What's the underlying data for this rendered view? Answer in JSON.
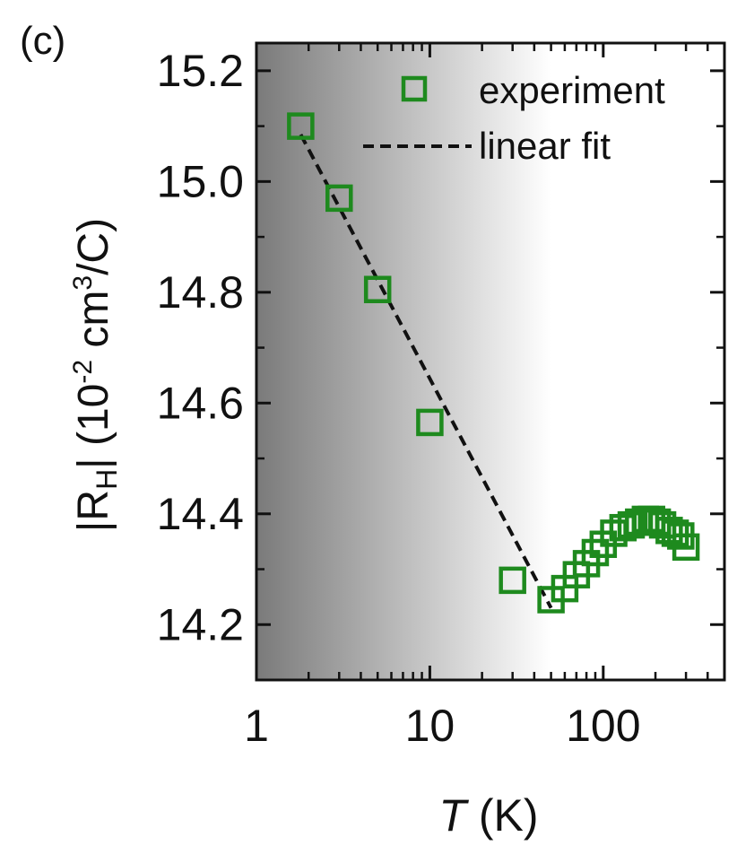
{
  "panel_label": "(c)",
  "colors": {
    "marker": "#1e8a1e",
    "fit_line": "#111111",
    "axes": "#111111",
    "shade_dark": "#7a7a7a",
    "shade_light": "#ffffff"
  },
  "chart_data": {
    "type": "scatter",
    "title": "",
    "xlabel": {
      "symbol": "T",
      "unit": " (K)"
    },
    "ylabel": {
      "prefix": "|R",
      "sub": "H",
      "mid": "| (10",
      "sup1": "-2",
      "mid2": " cm",
      "sup2": "3",
      "suffix": "/C)"
    },
    "x_scale": "log",
    "xlim": [
      1,
      500
    ],
    "ylim": [
      14.1,
      15.25
    ],
    "x_ticks": [
      1,
      10,
      100
    ],
    "x_tick_labels": [
      "1",
      "10",
      "100"
    ],
    "y_ticks": [
      14.2,
      14.4,
      14.6,
      14.8,
      15.0,
      15.2
    ],
    "y_tick_labels": [
      "14.2",
      "14.4",
      "14.6",
      "14.8",
      "15.0",
      "15.2"
    ],
    "shaded_region": {
      "x_start": 1,
      "x_end": 50,
      "description_gradient": "dark-to-light"
    },
    "legend": {
      "placement": "top-right",
      "entries": [
        {
          "label": "experiment",
          "kind": "marker"
        },
        {
          "label": "linear fit",
          "kind": "dashed-line"
        }
      ]
    },
    "series": [
      {
        "name": "experiment",
        "kind": "open-square",
        "x": [
          1.8,
          3,
          5,
          10,
          30,
          50,
          60,
          70,
          80,
          90,
          100,
          115,
          130,
          145,
          160,
          175,
          190,
          205,
          220,
          240,
          260,
          280,
          300
        ],
        "y": [
          15.1,
          14.97,
          14.805,
          14.565,
          14.28,
          14.245,
          14.265,
          14.29,
          14.31,
          14.33,
          14.345,
          14.365,
          14.375,
          14.38,
          14.385,
          14.39,
          14.39,
          14.385,
          14.38,
          14.37,
          14.365,
          14.36,
          14.34
        ]
      },
      {
        "name": "linear fit",
        "kind": "dashed-line",
        "x": [
          1.8,
          50
        ],
        "y": [
          15.085,
          14.23
        ]
      }
    ]
  }
}
